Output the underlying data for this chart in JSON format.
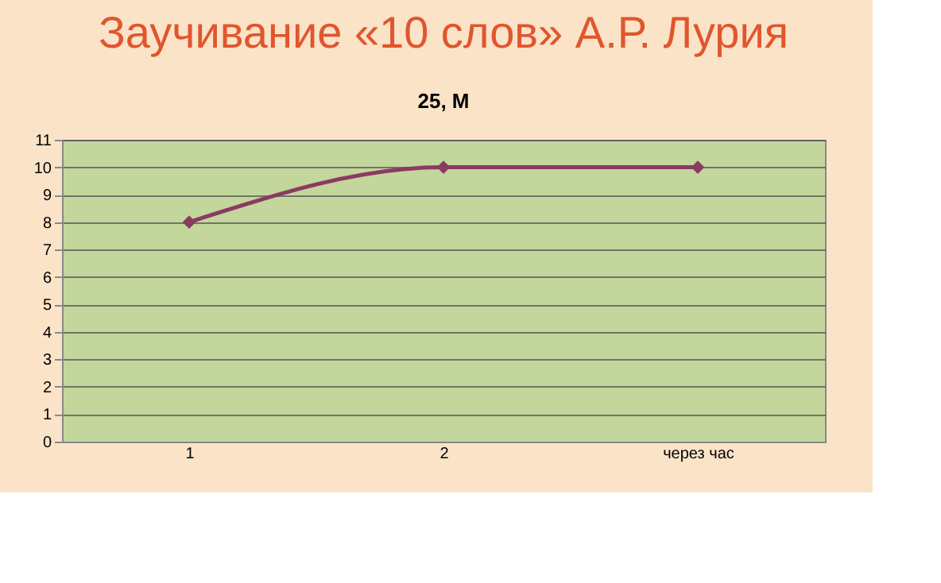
{
  "chart_data": {
    "type": "line",
    "title": "Заучивание «10 слов» А.Р. Лурия",
    "subtitle": "25, М",
    "categories": [
      "1",
      "2",
      "через час"
    ],
    "series": [
      {
        "color": "#8b3a62",
        "values": [
          8,
          10,
          10
        ]
      }
    ],
    "ylim": [
      0,
      11
    ],
    "yticks": [
      0,
      1,
      2,
      3,
      4,
      5,
      6,
      7,
      8,
      9,
      10,
      11
    ],
    "grid": "y",
    "marker": "diamond",
    "legend": false
  }
}
